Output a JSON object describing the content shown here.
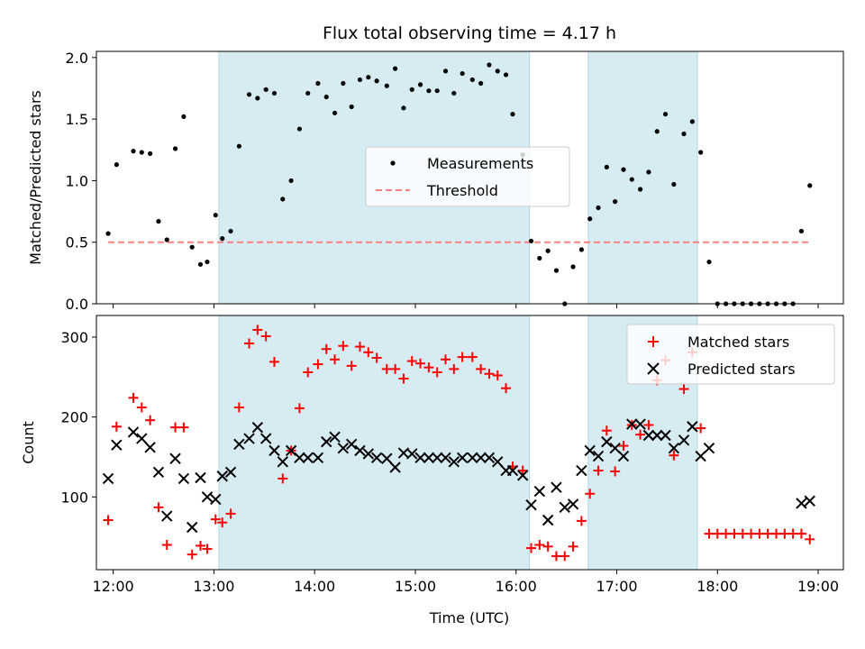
{
  "chart_data": [
    {
      "type": "scatter",
      "title": "Flux total observing time = 4.17 h",
      "xlabel": "",
      "ylabel": "Matched/Predicted stars",
      "xlim": [
        "11:50",
        "19:15"
      ],
      "ylim": [
        0,
        2.05
      ],
      "y_ticks": [
        0.0,
        0.5,
        1.0,
        1.5,
        2.0
      ],
      "y_tick_labels": [
        "0.0",
        "0.5",
        "1.0",
        "1.5",
        "2.0"
      ],
      "legend_location": "center",
      "shaded_intervals": [
        [
          "13:03",
          "16:08"
        ],
        [
          "16:43",
          "17:48"
        ]
      ],
      "shade_color": "#add8e6",
      "series": [
        {
          "name": "Measurements",
          "marker": "dot",
          "color": "#000000",
          "x": [
            "11:57",
            "12:02",
            "12:12",
            "12:17",
            "12:22",
            "12:27",
            "12:32",
            "12:37",
            "12:42",
            "12:47",
            "12:52",
            "12:56",
            "13:01",
            "13:05",
            "13:10",
            "13:15",
            "13:21",
            "13:26",
            "13:31",
            "13:36",
            "13:41",
            "13:46",
            "13:51",
            "13:56",
            "14:02",
            "14:07",
            "14:12",
            "14:17",
            "14:22",
            "14:27",
            "14:32",
            "14:37",
            "14:43",
            "14:48",
            "14:53",
            "14:58",
            "15:03",
            "15:08",
            "15:13",
            "15:18",
            "15:23",
            "15:28",
            "15:34",
            "15:39",
            "15:44",
            "15:49",
            "15:54",
            "15:58",
            "16:04",
            "16:09",
            "16:14",
            "16:19",
            "16:24",
            "16:29",
            "16:34",
            "16:39",
            "16:44",
            "16:49",
            "16:54",
            "16:59",
            "17:04",
            "17:09",
            "17:14",
            "17:19",
            "17:24",
            "17:29",
            "17:34",
            "17:40",
            "17:45",
            "17:50",
            "17:55",
            "18:00",
            "18:05",
            "18:10",
            "18:15",
            "18:20",
            "18:25",
            "18:30",
            "18:35",
            "18:40",
            "18:45",
            "18:50",
            "18:55"
          ],
          "y": [
            0.57,
            1.13,
            1.24,
            1.23,
            1.22,
            0.67,
            0.52,
            1.26,
            1.52,
            0.46,
            0.32,
            0.34,
            0.72,
            0.53,
            0.59,
            1.28,
            1.7,
            1.67,
            1.74,
            1.71,
            0.85,
            1.0,
            1.42,
            1.71,
            1.79,
            1.68,
            1.55,
            1.79,
            1.6,
            1.82,
            1.84,
            1.81,
            1.77,
            1.91,
            1.59,
            1.74,
            1.78,
            1.73,
            1.73,
            1.89,
            1.71,
            1.87,
            1.82,
            1.79,
            1.94,
            1.89,
            1.86,
            1.54,
            1.21,
            0.51,
            0.37,
            0.43,
            0.27,
            0.0,
            0.3,
            0.44,
            0.69,
            0.78,
            1.11,
            0.83,
            1.09,
            1.01,
            0.93,
            1.07,
            1.4,
            1.54,
            0.97,
            1.38,
            1.48,
            1.23,
            0.34,
            0.0,
            0.0,
            0.0,
            0.0,
            0.0,
            0.0,
            0.0,
            0.0,
            0.0,
            0.0,
            0.59,
            0.96
          ]
        },
        {
          "name": "Threshold",
          "marker": "dashed-line",
          "color": "#ff8080",
          "x": [
            "11:57",
            "18:55"
          ],
          "y": [
            0.5,
            0.5
          ]
        }
      ]
    },
    {
      "type": "scatter",
      "title": "",
      "xlabel": "Time (UTC)",
      "ylabel": "Count",
      "xlim": [
        "11:50",
        "19:15"
      ],
      "ylim": [
        9,
        327
      ],
      "x_ticks": [
        "12:00",
        "13:00",
        "14:00",
        "15:00",
        "16:00",
        "17:00",
        "18:00",
        "19:00"
      ],
      "y_ticks": [
        100,
        200,
        300
      ],
      "legend_location": "top-right",
      "shaded_intervals": [
        [
          "13:03",
          "16:08"
        ],
        [
          "16:43",
          "17:48"
        ]
      ],
      "shade_color": "#add8e6",
      "series": [
        {
          "name": "Matched stars",
          "marker": "plus",
          "color": "#ff0000",
          "x": [
            "11:57",
            "12:02",
            "12:12",
            "12:17",
            "12:22",
            "12:27",
            "12:32",
            "12:37",
            "12:42",
            "12:47",
            "12:52",
            "12:56",
            "13:01",
            "13:05",
            "13:10",
            "13:15",
            "13:21",
            "13:26",
            "13:31",
            "13:36",
            "13:41",
            "13:46",
            "13:51",
            "13:56",
            "14:02",
            "14:07",
            "14:12",
            "14:17",
            "14:22",
            "14:27",
            "14:32",
            "14:37",
            "14:43",
            "14:48",
            "14:53",
            "14:58",
            "15:03",
            "15:08",
            "15:13",
            "15:18",
            "15:23",
            "15:28",
            "15:34",
            "15:39",
            "15:44",
            "15:49",
            "15:54",
            "15:58",
            "16:04",
            "16:09",
            "16:14",
            "16:19",
            "16:24",
            "16:29",
            "16:34",
            "16:39",
            "16:44",
            "16:49",
            "16:54",
            "16:59",
            "17:04",
            "17:09",
            "17:14",
            "17:19",
            "17:24",
            "17:29",
            "17:34",
            "17:40",
            "17:45",
            "17:50",
            "17:55",
            "18:00",
            "18:05",
            "18:10",
            "18:15",
            "18:20",
            "18:25",
            "18:30",
            "18:35",
            "18:40",
            "18:45",
            "18:50",
            "18:55"
          ],
          "y": [
            71,
            188,
            224,
            212,
            196,
            87,
            40,
            187,
            187,
            28,
            39,
            35,
            72,
            68,
            79,
            212,
            292,
            309,
            301,
            269,
            123,
            158,
            211,
            256,
            266,
            285,
            272,
            289,
            264,
            288,
            281,
            274,
            260,
            260,
            248,
            270,
            267,
            262,
            256,
            272,
            260,
            275,
            275,
            260,
            254,
            252,
            236,
            138,
            133,
            36,
            40,
            38,
            26,
            26,
            38,
            70,
            104,
            133,
            183,
            132,
            164,
            190,
            178,
            190,
            246,
            271,
            152,
            235,
            281,
            186,
            54,
            54,
            54,
            54,
            54,
            54,
            54,
            54,
            54,
            54,
            54,
            54,
            47
          ]
        },
        {
          "name": "Predicted stars",
          "marker": "x",
          "color": "#000000",
          "x": [
            "11:57",
            "12:02",
            "12:12",
            "12:17",
            "12:22",
            "12:27",
            "12:32",
            "12:37",
            "12:42",
            "12:47",
            "12:52",
            "12:56",
            "13:01",
            "13:05",
            "13:10",
            "13:15",
            "13:21",
            "13:26",
            "13:31",
            "13:36",
            "13:41",
            "13:46",
            "13:51",
            "13:56",
            "14:02",
            "14:07",
            "14:12",
            "14:17",
            "14:22",
            "14:27",
            "14:32",
            "14:37",
            "14:43",
            "14:48",
            "14:53",
            "14:58",
            "15:03",
            "15:08",
            "15:13",
            "15:18",
            "15:23",
            "15:28",
            "15:34",
            "15:39",
            "15:44",
            "15:49",
            "15:54",
            "15:58",
            "16:04",
            "16:09",
            "16:14",
            "16:19",
            "16:24",
            "16:29",
            "16:34",
            "16:39",
            "16:44",
            "16:49",
            "16:54",
            "16:59",
            "17:04",
            "17:09",
            "17:14",
            "17:19",
            "17:24",
            "17:29",
            "17:34",
            "17:40",
            "17:45",
            "17:50",
            "17:55",
            "18:00",
            "18:05",
            "18:10",
            "18:15",
            "18:20",
            "18:25",
            "18:30",
            "18:35",
            "18:40",
            "18:45",
            "18:50",
            "18:55"
          ],
          "y": [
            123,
            165,
            181,
            173,
            162,
            131,
            76,
            148,
            123,
            62,
            124,
            100,
            97,
            126,
            131,
            166,
            173,
            187,
            173,
            158,
            144,
            158,
            149,
            149,
            149,
            169,
            175,
            161,
            166,
            158,
            154,
            149,
            148,
            137,
            155,
            154,
            149,
            149,
            149,
            149,
            144,
            149,
            149,
            149,
            149,
            144,
            133,
            133,
            127,
            90,
            107,
            71,
            112,
            87,
            91,
            133,
            158,
            151,
            169,
            161,
            151,
            191,
            191,
            177,
            177,
            177,
            161,
            171,
            188,
            151,
            161,
            null,
            null,
            null,
            null,
            null,
            null,
            null,
            null,
            null,
            null,
            92,
            95
          ]
        }
      ]
    }
  ]
}
